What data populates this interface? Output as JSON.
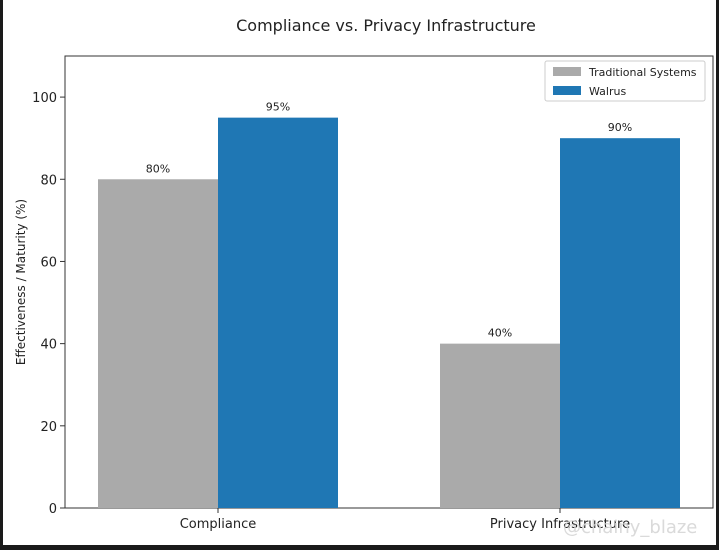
{
  "chart_data": {
    "type": "bar",
    "title": "Compliance vs. Privacy Infrastructure",
    "xlabel": "",
    "ylabel": "Effectiveness / Maturity (%)",
    "categories": [
      "Compliance",
      "Privacy Infrastructure"
    ],
    "series": [
      {
        "name": "Traditional Systems",
        "values": [
          80,
          40
        ],
        "labels": [
          "80%",
          "40%"
        ],
        "color": "#aaaaaa"
      },
      {
        "name": "Walrus",
        "values": [
          95,
          90
        ],
        "labels": [
          "95%",
          "90%"
        ],
        "color": "#1f77b4"
      }
    ],
    "ylim": [
      0,
      110
    ],
    "yticks": [
      0,
      20,
      40,
      60,
      80,
      100
    ],
    "grid": false,
    "legend_position": "top-right"
  },
  "watermark": {
    "text": "@chainy_blaze"
  }
}
